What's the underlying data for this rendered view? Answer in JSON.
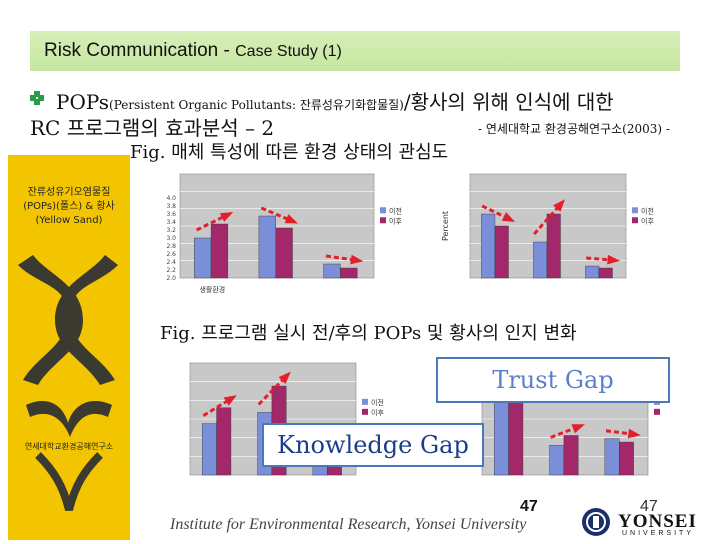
{
  "header": {
    "title_main": "Risk Communication - ",
    "title_sub": "Case Study (1)"
  },
  "heading": {
    "line1_main": "POPs",
    "line1_paren": "(Persistent Organic Pollutants: 잔류성유기화합물질)",
    "line1_rest": "/황사의 위해 인식에 대한",
    "line2": "RC 프로그램의 효과분석 – 2",
    "source": "- 연세대학교 환경공해연구소(2003) -"
  },
  "captions": {
    "fig1": "Fig. 매체 특성에 따른 환경 상태의 관심도",
    "fig2": "Fig. 프로그램 실시 전/후의 POPs 및 황사의 인지 변화"
  },
  "cover": {
    "top_text": "잔류성유기오염물질(POPs)(폴스) & 황사(Yellow Sand)",
    "bottom_text": "연세대학교환경공해연구소"
  },
  "callouts": {
    "trust_gap": "Trust Gap",
    "knowledge_gap": "Knowledge Gap"
  },
  "footer": {
    "page_center": "47",
    "page_right": "47",
    "institute": "Institute for Environmental Research, Yonsei University",
    "logo_word": "YONSEI",
    "logo_sub": "UNIVERSITY"
  },
  "colors": {
    "before": "#7b8fd8",
    "after": "#a3286a",
    "arrow": "#e0202c",
    "title_bar": "#c9e8a4"
  },
  "chart_data": [
    {
      "type": "bar",
      "categories": [
        "생활환경",
        "",
        ""
      ],
      "ylabel": "",
      "ylim": [
        2.0,
        4.6
      ],
      "yticks": [
        2.0,
        2.2,
        2.4,
        2.6,
        2.8,
        3.0,
        3.2,
        3.4,
        3.6,
        3.8,
        4.0
      ],
      "series": [
        {
          "name": "이전",
          "values": [
            3.0,
            3.55,
            2.35
          ]
        },
        {
          "name": "이후",
          "values": [
            3.35,
            3.25,
            2.25
          ]
        }
      ]
    },
    {
      "type": "bar",
      "categories": [
        "",
        "",
        ""
      ],
      "ylabel": "Percent",
      "ylim": [
        2.0,
        4.6
      ],
      "series": [
        {
          "name": "이전",
          "values": [
            3.6,
            2.9,
            2.3
          ]
        },
        {
          "name": "이후",
          "values": [
            3.3,
            3.6,
            2.25
          ]
        }
      ]
    },
    {
      "type": "bar",
      "categories": [
        "",
        "",
        ""
      ],
      "ylim": [
        0,
        1.7
      ],
      "series": [
        {
          "name": "이전",
          "values": [
            0.78,
            0.95,
            0.55
          ]
        },
        {
          "name": "이후",
          "values": [
            1.02,
            1.35,
            0.5
          ]
        }
      ]
    },
    {
      "type": "bar",
      "categories": [
        "",
        "",
        ""
      ],
      "ylim": [
        0,
        1.7
      ],
      "series": [
        {
          "name": "",
          "values": [
            1.1,
            0.45,
            0.55
          ]
        },
        {
          "name": "",
          "values": [
            1.3,
            0.6,
            0.5
          ]
        }
      ]
    }
  ]
}
